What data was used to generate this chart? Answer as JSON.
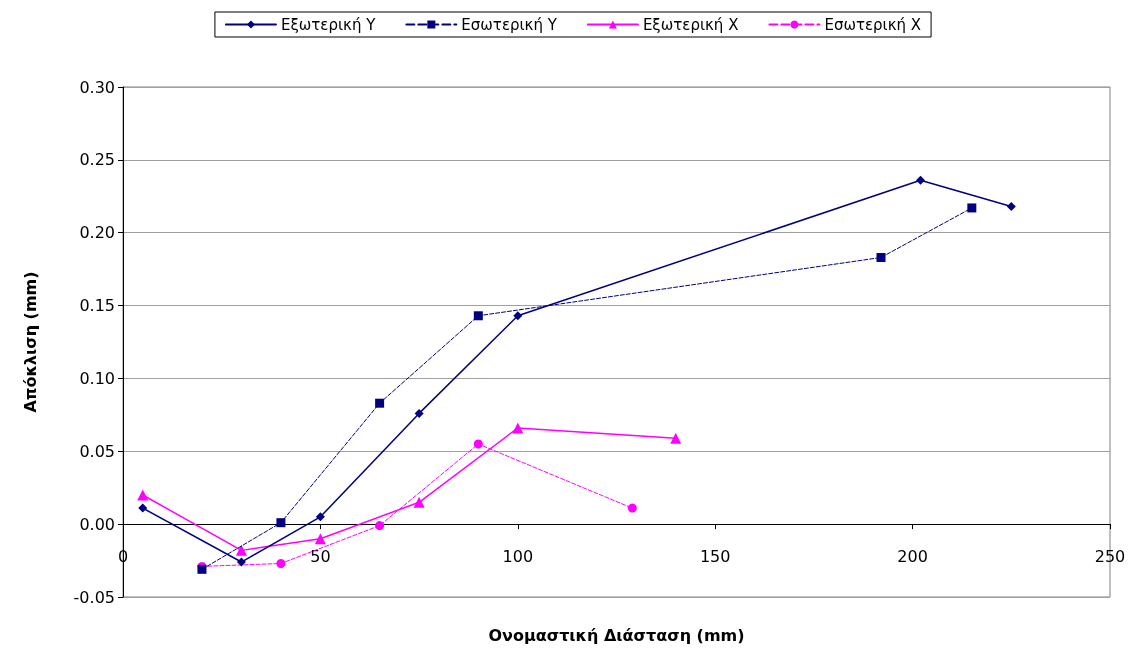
{
  "chart_data": {
    "type": "line",
    "xlabel": "Ονομαστική Διάσταση (mm)",
    "ylabel": "Απόκλιση (mm)",
    "xlim": [
      0,
      250
    ],
    "xticks": [
      0,
      50,
      100,
      150,
      200,
      250
    ],
    "ylim": [
      -0.05,
      0.3
    ],
    "yticks": [
      {
        "value": -0.05,
        "label": "-0.05"
      },
      {
        "value": 0,
        "label": "0.00"
      },
      {
        "value": 0.05,
        "label": "0.05"
      },
      {
        "value": 0.1,
        "label": "0.10"
      },
      {
        "value": 0.15,
        "label": "0.15"
      },
      {
        "value": 0.2,
        "label": "0.20"
      },
      {
        "value": 0.25,
        "label": "0.25"
      },
      {
        "value": 0.3,
        "label": "0.30"
      }
    ],
    "grid": "y",
    "legend": "top",
    "series": [
      {
        "name": "Εξωτερική Y",
        "color": "#000080",
        "marker": "diamond",
        "line_style": "solid",
        "x": [
          5,
          30,
          50,
          75,
          100,
          202,
          225
        ],
        "values": [
          0.011,
          -0.026,
          0.005,
          0.076,
          0.143,
          0.236,
          0.218
        ]
      },
      {
        "name": "Εσωτερική Y",
        "color": "#000080",
        "marker": "square",
        "line_style": "dashed",
        "x": [
          20,
          40,
          65,
          90,
          192,
          215
        ],
        "values": [
          -0.031,
          0.001,
          0.083,
          0.143,
          0.183,
          0.217
        ]
      },
      {
        "name": "Εξωτερική X",
        "color": "#ff00ff",
        "marker": "triangle",
        "line_style": "solid",
        "x": [
          5,
          30,
          50,
          75,
          100,
          140
        ],
        "values": [
          0.02,
          -0.018,
          -0.01,
          0.015,
          0.066,
          0.059
        ]
      },
      {
        "name": "Εσωτερική X",
        "color": "#ff00ff",
        "marker": "circle",
        "line_style": "dashed",
        "x": [
          20,
          40,
          65,
          90,
          129
        ],
        "values": [
          -0.029,
          -0.027,
          -0.001,
          0.055,
          0.011
        ]
      }
    ]
  }
}
